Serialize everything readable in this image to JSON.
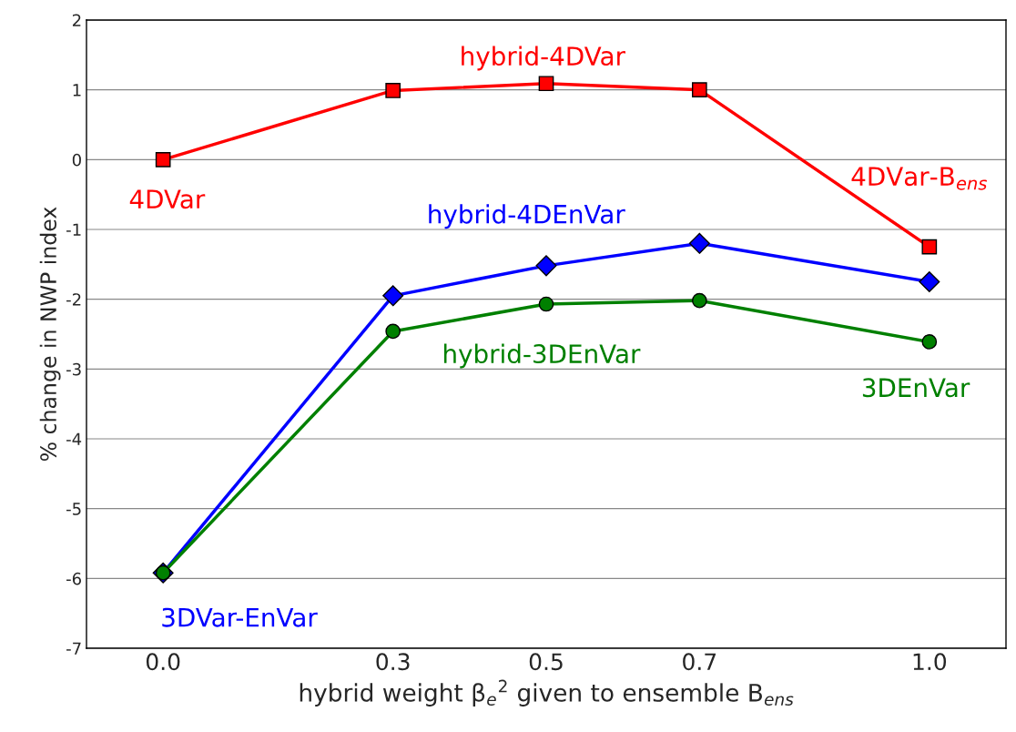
{
  "chart_data": {
    "type": "line",
    "xlabel": "hybrid weight β$_{e}$$^{2}$ given to ensemble B$_{ens}$",
    "ylabel": "% change in NWP index",
    "x": [
      0.0,
      0.3,
      0.5,
      0.7,
      1.0
    ],
    "series": [
      {
        "color": "#ff0000",
        "marker": "square",
        "values": [
          0.0,
          0.99,
          1.09,
          1.0,
          -1.25
        ]
      },
      {
        "color": "#0000ff",
        "marker": "diamond",
        "values": [
          -5.92,
          -1.95,
          -1.52,
          -1.2,
          -1.75
        ]
      },
      {
        "color": "#008000",
        "marker": "circle",
        "values": [
          -5.92,
          -2.46,
          -2.07,
          -2.02,
          -2.61
        ]
      }
    ],
    "annotations": [
      {
        "text": "4DVar",
        "x": 0.0,
        "y": 0.0
      },
      {
        "text": "hybrid-4DVar",
        "x": 0.5,
        "y": 1.09
      },
      {
        "text": "4DVar-B$_{ens}$",
        "x": 1.0,
        "y": -1.25
      },
      {
        "text": "hybrid-4DEnVar",
        "x": 0.5,
        "y": -1.52
      },
      {
        "text": "hybrid-3DEnVar",
        "x": 0.5,
        "y": -2.07
      },
      {
        "text": "3DEnVar",
        "x": 1.0,
        "y": -2.61
      },
      {
        "text": "3DVar-EnVar",
        "x": 0.0,
        "y": -5.92
      }
    ],
    "xlim": [
      -0.1,
      1.1
    ],
    "xticks": [
      {
        "value": 0.0,
        "label": "0.0"
      },
      0.3,
      0.5,
      0.7,
      {
        "value": 1.0,
        "label": "1.0"
      }
    ],
    "ylim": [
      -7,
      2
    ],
    "yticks": [
      -7,
      -6,
      -5,
      -4,
      -3,
      -2,
      -1,
      0,
      1,
      2
    ],
    "grid": "y",
    "line_style": "solid"
  }
}
